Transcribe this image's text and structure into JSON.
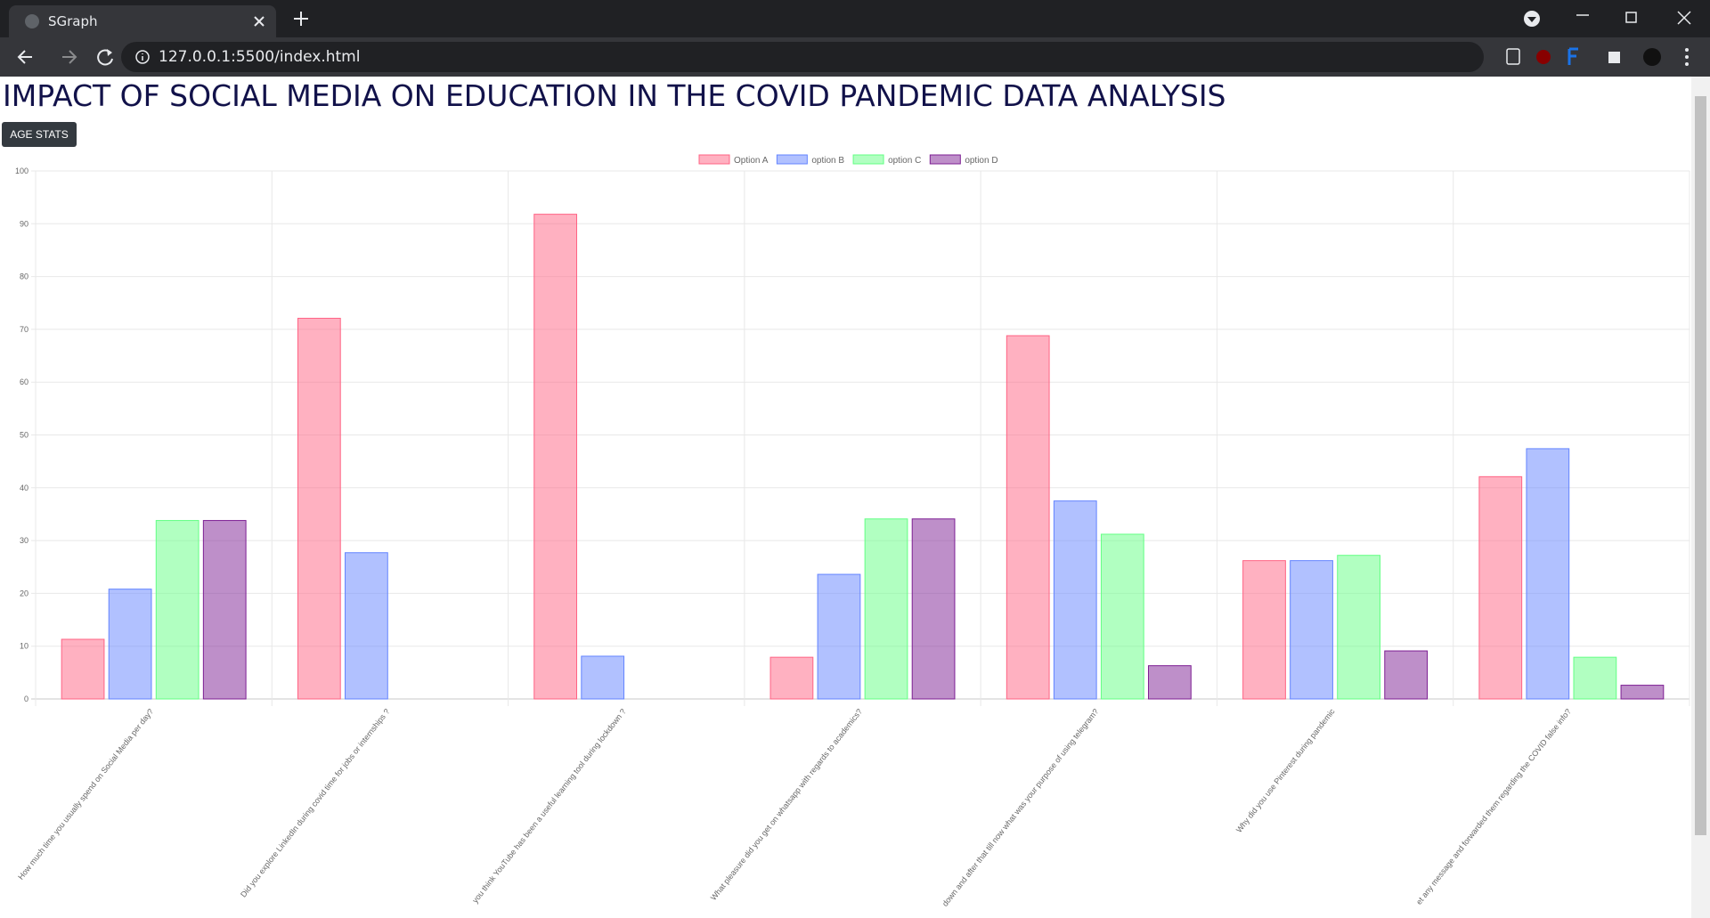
{
  "browser": {
    "tab_title": "SGraph",
    "url": "127.0.0.1:5500/index.html"
  },
  "page": {
    "heading": "IMPACT OF SOCIAL MEDIA ON EDUCATION IN THE COVID PANDEMIC DATA ANALYSIS",
    "button": "AGE STATS"
  },
  "chart_data": {
    "type": "bar",
    "categories": [
      "How much time you usually spend on Social Media per day?",
      "Did you explore LinkedIn during covid time for jobs or internships ?",
      "you think YouTube has been a useful learning tool during lockdown ?",
      "What pleasure did you get on whatsapp with regards to academics?",
      "down and after that till now what was your purpose of using telegram?",
      "Why did you use Pinterest during pandemic",
      "et any message and forwarded them regarding the COVID false info?"
    ],
    "series": [
      {
        "name": "Option A",
        "color": "#ff6384",
        "values": [
          11.3,
          72.1,
          91.8,
          7.9,
          68.8,
          26.2,
          42.1
        ]
      },
      {
        "name": "option B",
        "color": "#6384ff",
        "values": [
          20.8,
          27.7,
          8.1,
          23.6,
          37.5,
          26.2,
          47.4
        ]
      },
      {
        "name": "option C",
        "color": "#63ff84",
        "values": [
          33.8,
          0,
          0,
          34.1,
          31.2,
          27.2,
          7.9
        ]
      },
      {
        "name": "option D",
        "color": "#7d1f93",
        "values": [
          33.8,
          0,
          0,
          34.1,
          6.3,
          9.1,
          2.6
        ]
      }
    ],
    "ylim": [
      0,
      100
    ],
    "yticks": [
      0,
      10,
      20,
      30,
      40,
      50,
      60,
      70,
      80,
      90,
      100
    ],
    "grid": true
  }
}
